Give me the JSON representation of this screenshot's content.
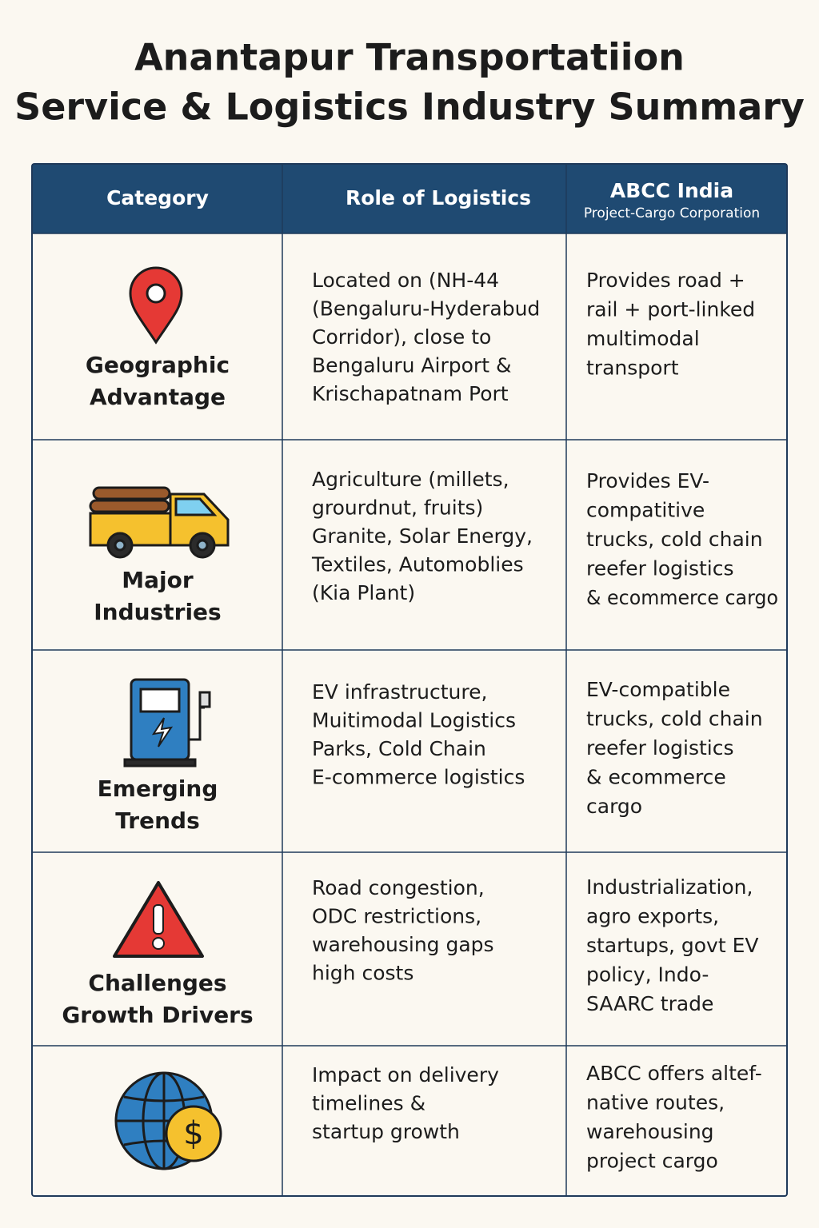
{
  "header": {
    "title_lines": [
      "Anantapur Transportatiion",
      "Service & Logistics Industry Summary"
    ]
  },
  "table": {
    "columns": [
      {
        "title": "Category"
      },
      {
        "title": "Role of Logistics"
      },
      {
        "title": "ABCC India",
        "subtitle": "Project-Cargo Corporation"
      }
    ],
    "rows": [
      {
        "category": [
          "Geographic",
          "Advantage"
        ],
        "role": [
          "Located on (NH-44",
          "(Bengaluru-Hyderabud",
          "Corridor), close to",
          "Bengaluru Airport &",
          "Krischapatnam Port"
        ],
        "abcc": [
          "Provides road +",
          "rail + port-linked",
          "multimodal",
          "transport"
        ]
      },
      {
        "category": [
          "Major",
          "Industries"
        ],
        "role": [
          "Agriculture (millets,",
          "grourdnut, fruits)",
          "Granite, Solar Energy,",
          "Textiles, Automoblies",
          "(Kia Plant)"
        ],
        "abcc": [
          "Provides EV-",
          "compatitive",
          "trucks, cold chain",
          "reefer logistics",
          "& ecommerce cargo"
        ]
      },
      {
        "category": [
          "Emerging",
          "Trends"
        ],
        "role": [
          "EV infrastructure,",
          "Muitimodal Logistics",
          "Parks, Cold Chain",
          "E-commerce logistics"
        ],
        "abcc": [
          "EV-compatible",
          "trucks, cold chain",
          "reefer logistics",
          "& ecommerce",
          "cargo"
        ]
      },
      {
        "category": [
          "Challenges",
          "Growth Drivers"
        ],
        "role": [
          "Road congestion,",
          "ODC restrictions,",
          "warehousing gaps",
          "high costs"
        ],
        "abcc": [
          "Industrialization,",
          "agro exports,",
          "startups, govt EV",
          "policy, Indo-",
          "SAARC trade"
        ]
      },
      {
        "category": [],
        "role": [
          "Impact on delivery",
          "timelines &",
          "startup growth"
        ],
        "abcc": [
          "ABCC offers altef-",
          "native routes,",
          "warehousing",
          "project cargo"
        ]
      }
    ]
  }
}
